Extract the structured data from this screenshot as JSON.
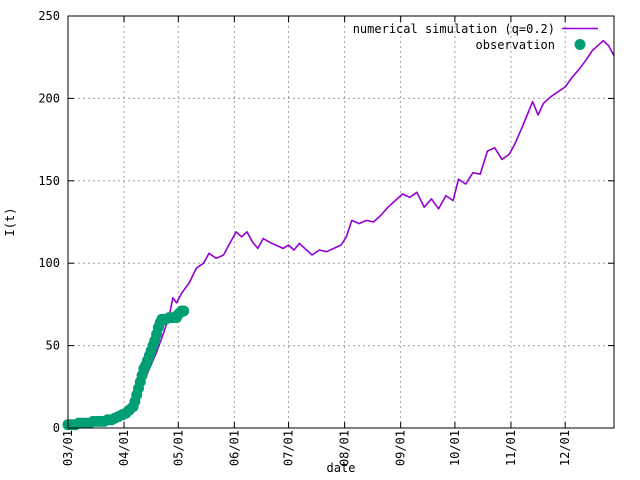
{
  "chart_data": {
    "type": "line",
    "xlabel": "date",
    "ylabel": "I(t)",
    "ylim": [
      0,
      250
    ],
    "xlim": [
      "2020-03-01",
      "2020-12-28"
    ],
    "yticks": [
      0,
      50,
      100,
      150,
      200,
      250
    ],
    "xticks": [
      {
        "label": "03/01",
        "date": "2020-03-01"
      },
      {
        "label": "04/01",
        "date": "2020-04-01"
      },
      {
        "label": "05/01",
        "date": "2020-05-01"
      },
      {
        "label": "06/01",
        "date": "2020-06-01"
      },
      {
        "label": "07/01",
        "date": "2020-07-01"
      },
      {
        "label": "08/01",
        "date": "2020-08-01"
      },
      {
        "label": "09/01",
        "date": "2020-09-01"
      },
      {
        "label": "10/01",
        "date": "2020-10-01"
      },
      {
        "label": "11/01",
        "date": "2020-11-01"
      },
      {
        "label": "12/01",
        "date": "2020-12-01"
      }
    ],
    "grid": true,
    "legend": "top-right",
    "series": [
      {
        "name": "numerical simulation (q=0.2)",
        "style": "line",
        "color": "#9400d3",
        "points": [
          [
            "2020-03-01",
            2
          ],
          [
            "2020-03-08",
            3
          ],
          [
            "2020-03-15",
            4
          ],
          [
            "2020-03-22",
            5
          ],
          [
            "2020-03-29",
            7
          ],
          [
            "2020-04-03",
            10
          ],
          [
            "2020-04-07",
            15
          ],
          [
            "2020-04-11",
            26
          ],
          [
            "2020-04-15",
            36
          ],
          [
            "2020-04-19",
            46
          ],
          [
            "2020-04-23",
            58
          ],
          [
            "2020-04-26",
            68
          ],
          [
            "2020-04-28",
            79
          ],
          [
            "2020-04-30",
            76
          ],
          [
            "2020-05-03",
            82
          ],
          [
            "2020-05-07",
            88
          ],
          [
            "2020-05-11",
            97
          ],
          [
            "2020-05-15",
            100
          ],
          [
            "2020-05-18",
            106
          ],
          [
            "2020-05-22",
            103
          ],
          [
            "2020-05-26",
            105
          ],
          [
            "2020-05-30",
            113
          ],
          [
            "2020-06-02",
            119
          ],
          [
            "2020-06-05",
            116
          ],
          [
            "2020-06-08",
            119
          ],
          [
            "2020-06-11",
            113
          ],
          [
            "2020-06-14",
            109
          ],
          [
            "2020-06-17",
            115
          ],
          [
            "2020-06-20",
            113
          ],
          [
            "2020-06-24",
            111
          ],
          [
            "2020-06-28",
            109
          ],
          [
            "2020-07-01",
            111
          ],
          [
            "2020-07-04",
            108
          ],
          [
            "2020-07-07",
            112
          ],
          [
            "2020-07-10",
            109
          ],
          [
            "2020-07-14",
            105
          ],
          [
            "2020-07-18",
            108
          ],
          [
            "2020-07-22",
            107
          ],
          [
            "2020-07-26",
            109
          ],
          [
            "2020-07-30",
            111
          ],
          [
            "2020-08-02",
            116
          ],
          [
            "2020-08-05",
            126
          ],
          [
            "2020-08-09",
            124
          ],
          [
            "2020-08-13",
            126
          ],
          [
            "2020-08-17",
            125
          ],
          [
            "2020-08-21",
            129
          ],
          [
            "2020-08-25",
            134
          ],
          [
            "2020-08-29",
            138
          ],
          [
            "2020-09-02",
            142
          ],
          [
            "2020-09-06",
            140
          ],
          [
            "2020-09-10",
            143
          ],
          [
            "2020-09-14",
            134
          ],
          [
            "2020-09-18",
            139
          ],
          [
            "2020-09-22",
            133
          ],
          [
            "2020-09-26",
            141
          ],
          [
            "2020-09-30",
            138
          ],
          [
            "2020-10-03",
            151
          ],
          [
            "2020-10-07",
            148
          ],
          [
            "2020-10-11",
            155
          ],
          [
            "2020-10-15",
            154
          ],
          [
            "2020-10-19",
            168
          ],
          [
            "2020-10-23",
            170
          ],
          [
            "2020-10-27",
            163
          ],
          [
            "2020-10-31",
            166
          ],
          [
            "2020-11-03",
            172
          ],
          [
            "2020-11-07",
            182
          ],
          [
            "2020-11-10",
            190
          ],
          [
            "2020-11-13",
            198
          ],
          [
            "2020-11-16",
            190
          ],
          [
            "2020-11-19",
            197
          ],
          [
            "2020-11-23",
            201
          ],
          [
            "2020-11-27",
            204
          ],
          [
            "2020-12-01",
            207
          ],
          [
            "2020-12-05",
            213
          ],
          [
            "2020-12-09",
            218
          ],
          [
            "2020-12-13",
            224
          ],
          [
            "2020-12-16",
            229
          ],
          [
            "2020-12-19",
            232
          ],
          [
            "2020-12-22",
            235
          ],
          [
            "2020-12-25",
            232
          ],
          [
            "2020-12-28",
            226
          ]
        ]
      },
      {
        "name": "observation",
        "style": "points",
        "color": "#009e73",
        "points": [
          [
            "2020-03-01",
            2
          ],
          [
            "2020-03-03",
            2
          ],
          [
            "2020-03-05",
            2
          ],
          [
            "2020-03-07",
            3
          ],
          [
            "2020-03-09",
            3
          ],
          [
            "2020-03-11",
            3
          ],
          [
            "2020-03-13",
            3
          ],
          [
            "2020-03-15",
            4
          ],
          [
            "2020-03-17",
            4
          ],
          [
            "2020-03-19",
            4
          ],
          [
            "2020-03-21",
            4
          ],
          [
            "2020-03-23",
            5
          ],
          [
            "2020-03-25",
            5
          ],
          [
            "2020-03-27",
            6
          ],
          [
            "2020-03-29",
            7
          ],
          [
            "2020-03-31",
            8
          ],
          [
            "2020-04-02",
            9
          ],
          [
            "2020-04-04",
            11
          ],
          [
            "2020-04-06",
            13
          ],
          [
            "2020-04-07",
            16
          ],
          [
            "2020-04-08",
            20
          ],
          [
            "2020-04-09",
            24
          ],
          [
            "2020-04-10",
            28
          ],
          [
            "2020-04-11",
            32
          ],
          [
            "2020-04-12",
            36
          ],
          [
            "2020-04-13",
            38
          ],
          [
            "2020-04-14",
            41
          ],
          [
            "2020-04-15",
            44
          ],
          [
            "2020-04-16",
            47
          ],
          [
            "2020-04-17",
            50
          ],
          [
            "2020-04-18",
            53
          ],
          [
            "2020-04-19",
            57
          ],
          [
            "2020-04-20",
            61
          ],
          [
            "2020-04-21",
            64
          ],
          [
            "2020-04-22",
            66
          ],
          [
            "2020-04-24",
            66
          ],
          [
            "2020-04-26",
            67
          ],
          [
            "2020-04-28",
            67
          ],
          [
            "2020-04-30",
            67
          ],
          [
            "2020-05-01",
            69
          ],
          [
            "2020-05-02",
            70
          ],
          [
            "2020-05-03",
            71
          ],
          [
            "2020-05-04",
            71
          ]
        ]
      }
    ]
  }
}
